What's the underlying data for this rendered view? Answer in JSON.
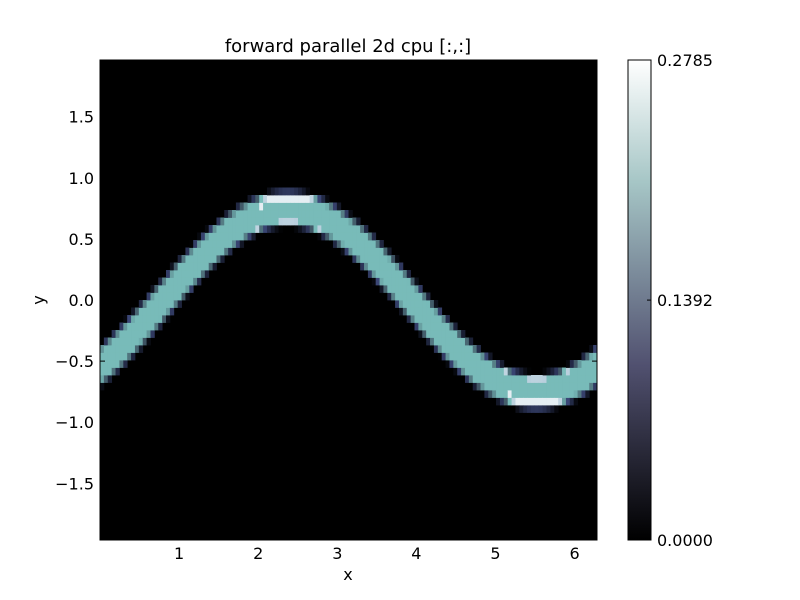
{
  "chart_data": {
    "type": "heatmap",
    "title": "forward parallel 2d cpu [:,:]",
    "xlabel": "x",
    "ylabel": "y",
    "xlim": [
      0.0,
      6.2832
    ],
    "ylim": [
      -1.9635,
      1.9635
    ],
    "xticks": [
      1,
      2,
      3,
      4,
      5,
      6
    ],
    "xtick_labels": [
      "1",
      "2",
      "3",
      "4",
      "5",
      "6"
    ],
    "yticks": [
      -1.5,
      -1.0,
      -0.5,
      0.0,
      0.5,
      1.0,
      1.5
    ],
    "ytick_labels": [
      "−1.5",
      "−1.0",
      "−0.5",
      "0.0",
      "0.5",
      "1.0",
      "1.5"
    ],
    "grid": false,
    "grid_cells": [
      128,
      64
    ],
    "field": {
      "description": "value is high along the curve y = sin(x - 0.8) * 0.75, zero elsewhere",
      "curve_amplitude": 0.75,
      "curve_phase": 0.8,
      "band_half_width": 0.11,
      "peak_value": 0.2785,
      "core_value": 0.2
    },
    "colormap": "bone",
    "colorbar": {
      "min": 0.0,
      "max": 0.2785,
      "ticks": [
        0.0,
        0.1392,
        0.2785
      ],
      "tick_labels": [
        "0.0000",
        "0.1392",
        "0.2785"
      ]
    }
  }
}
